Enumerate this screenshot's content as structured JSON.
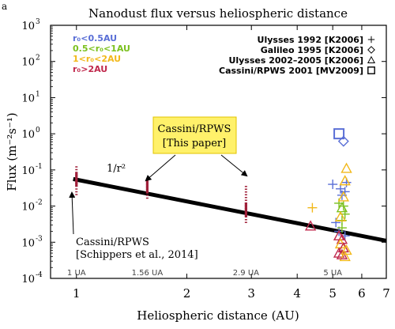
{
  "panel_letter": "a",
  "chart_data": {
    "type": "scatter",
    "title": "Nanodust flux versus heliospheric distance",
    "xlabel": "Heliospheric distance (AU)",
    "ylabel": "Flux (m⁻²s⁻¹)",
    "x_scale": "log",
    "y_scale": "log",
    "xlim": [
      0.85,
      7
    ],
    "ylim": [
      0.0001,
      1000
    ],
    "x_ticks": [
      1,
      2,
      3,
      4,
      5,
      6,
      7
    ],
    "x_tick_labels": [
      "1",
      "2",
      "3",
      "4",
      "5",
      "6",
      "7"
    ],
    "y_ticks": [
      0.0001,
      0.001,
      0.01,
      0.1,
      1,
      10,
      100,
      1000
    ],
    "y_tick_labels": [
      {
        "base": "10",
        "exp": "-4"
      },
      {
        "base": "10",
        "exp": "-3"
      },
      {
        "base": "10",
        "exp": "-2"
      },
      {
        "base": "10",
        "exp": "-1"
      },
      {
        "base": "10",
        "exp": "0"
      },
      {
        "base": "10",
        "exp": "1"
      },
      {
        "base": "10",
        "exp": "2"
      },
      {
        "base": "10",
        "exp": "3"
      }
    ],
    "fit_line": {
      "label": "1/r²",
      "points": [
        [
          0.98,
          0.056
        ],
        [
          7,
          0.0011
        ]
      ],
      "color": "#000000"
    },
    "cassini_measurements": {
      "color": "#a0203a",
      "items": [
        {
          "x": 1.0,
          "y_range": [
            0.02,
            0.13
          ],
          "y_center": 0.055,
          "distance_label": "1 UA"
        },
        {
          "x": 1.56,
          "y_range": [
            0.016,
            0.065
          ],
          "y_center": 0.035,
          "distance_label": "1.56 UA"
        },
        {
          "x": 2.9,
          "y_range": [
            0.0034,
            0.04
          ],
          "y_center": 0.008,
          "distance_label": "2.9 UA"
        },
        {
          "x": 5.0,
          "y_range": null,
          "y_center": null,
          "distance_label": "5 UA"
        }
      ]
    },
    "distance_legend": [
      {
        "label": "r₀<0.5AU",
        "color": "#5a6fd6"
      },
      {
        "label": "0.5<r₀<1AU",
        "color": "#7cc11f"
      },
      {
        "label": "1<r₀<2AU",
        "color": "#f2b81a"
      },
      {
        "label": "r₀>2AU",
        "color": "#c0284c"
      }
    ],
    "mission_legend": [
      {
        "label": "Ulysses 1992 [K2006]",
        "marker": "plus"
      },
      {
        "label": "Galileo 1995 [K2006]",
        "marker": "diamond"
      },
      {
        "label": "Ulysses 2002–2005 [K2006]",
        "marker": "triangle"
      },
      {
        "label": "Cassini/RPWS 2001 [MV2009]",
        "marker": "square"
      }
    ],
    "series": [
      {
        "name": "Ulysses 1992 [K2006]",
        "marker": "plus",
        "points": [
          {
            "x": 5.0,
            "y": 0.04,
            "c": "#5a6fd6"
          },
          {
            "x": 5.45,
            "y": 0.045,
            "c": "#5a6fd6"
          },
          {
            "x": 5.25,
            "y": 0.03,
            "c": "#5a6fd6"
          },
          {
            "x": 5.3,
            "y": 0.02,
            "c": "#5a6fd6"
          },
          {
            "x": 5.4,
            "y": 0.025,
            "c": "#5a6fd6"
          },
          {
            "x": 5.2,
            "y": 0.012,
            "c": "#7cc11f"
          },
          {
            "x": 5.35,
            "y": 0.01,
            "c": "#7cc11f"
          },
          {
            "x": 5.4,
            "y": 0.006,
            "c": "#7cc11f"
          },
          {
            "x": 5.3,
            "y": 0.004,
            "c": "#7cc11f"
          },
          {
            "x": 4.4,
            "y": 0.009,
            "c": "#f2b81a"
          },
          {
            "x": 5.2,
            "y": 0.002,
            "c": "#5a6fd6"
          },
          {
            "x": 5.3,
            "y": 0.0025,
            "c": "#7cc11f"
          },
          {
            "x": 5.4,
            "y": 0.0015,
            "c": "#5a6fd6"
          },
          {
            "x": 5.1,
            "y": 0.0035,
            "c": "#5a6fd6"
          }
        ]
      },
      {
        "name": "Galileo 1995 [K2006]",
        "marker": "diamond",
        "points": [
          {
            "x": 5.35,
            "y": 0.62,
            "c": "#5a6fd6"
          }
        ]
      },
      {
        "name": "Ulysses 2002–2005 [K2006]",
        "marker": "triangle",
        "points": [
          {
            "x": 5.45,
            "y": 0.11,
            "c": "#f2b81a"
          },
          {
            "x": 5.4,
            "y": 0.05,
            "c": "#f2b81a"
          },
          {
            "x": 5.35,
            "y": 0.018,
            "c": "#f2b81a"
          },
          {
            "x": 5.3,
            "y": 0.009,
            "c": "#7cc11f"
          },
          {
            "x": 5.25,
            "y": 0.005,
            "c": "#f2b81a"
          },
          {
            "x": 4.35,
            "y": 0.0028,
            "c": "#c0284c"
          },
          {
            "x": 5.2,
            "y": 0.0015,
            "c": "#c0284c"
          },
          {
            "x": 5.3,
            "y": 0.0012,
            "c": "#c0284c"
          },
          {
            "x": 5.25,
            "y": 0.0009,
            "c": "#f2b81a"
          },
          {
            "x": 5.35,
            "y": 0.0007,
            "c": "#c0284c"
          },
          {
            "x": 5.2,
            "y": 0.0005,
            "c": "#c0284c"
          },
          {
            "x": 5.4,
            "y": 0.0004,
            "c": "#f2b81a"
          },
          {
            "x": 5.3,
            "y": 0.00045,
            "c": "#c0284c"
          },
          {
            "x": 5.45,
            "y": 0.0006,
            "c": "#f2b81a"
          }
        ]
      },
      {
        "name": "Cassini/RPWS 2001 [MV2009]",
        "marker": "square",
        "points": [
          {
            "x": 5.2,
            "y": 1.0,
            "c": "#5a6fd6"
          }
        ]
      }
    ],
    "annotations": {
      "box_text_line1": "Cassini/RPWS",
      "box_text_line2": "[This paper]",
      "box_color": "#fff16a",
      "box_border": "#e0c400",
      "bottom_text_line1": "Cassini/RPWS",
      "bottom_text_line2": "[Schippers et al., 2014]"
    },
    "grid": false,
    "legend_position": "top-right"
  }
}
